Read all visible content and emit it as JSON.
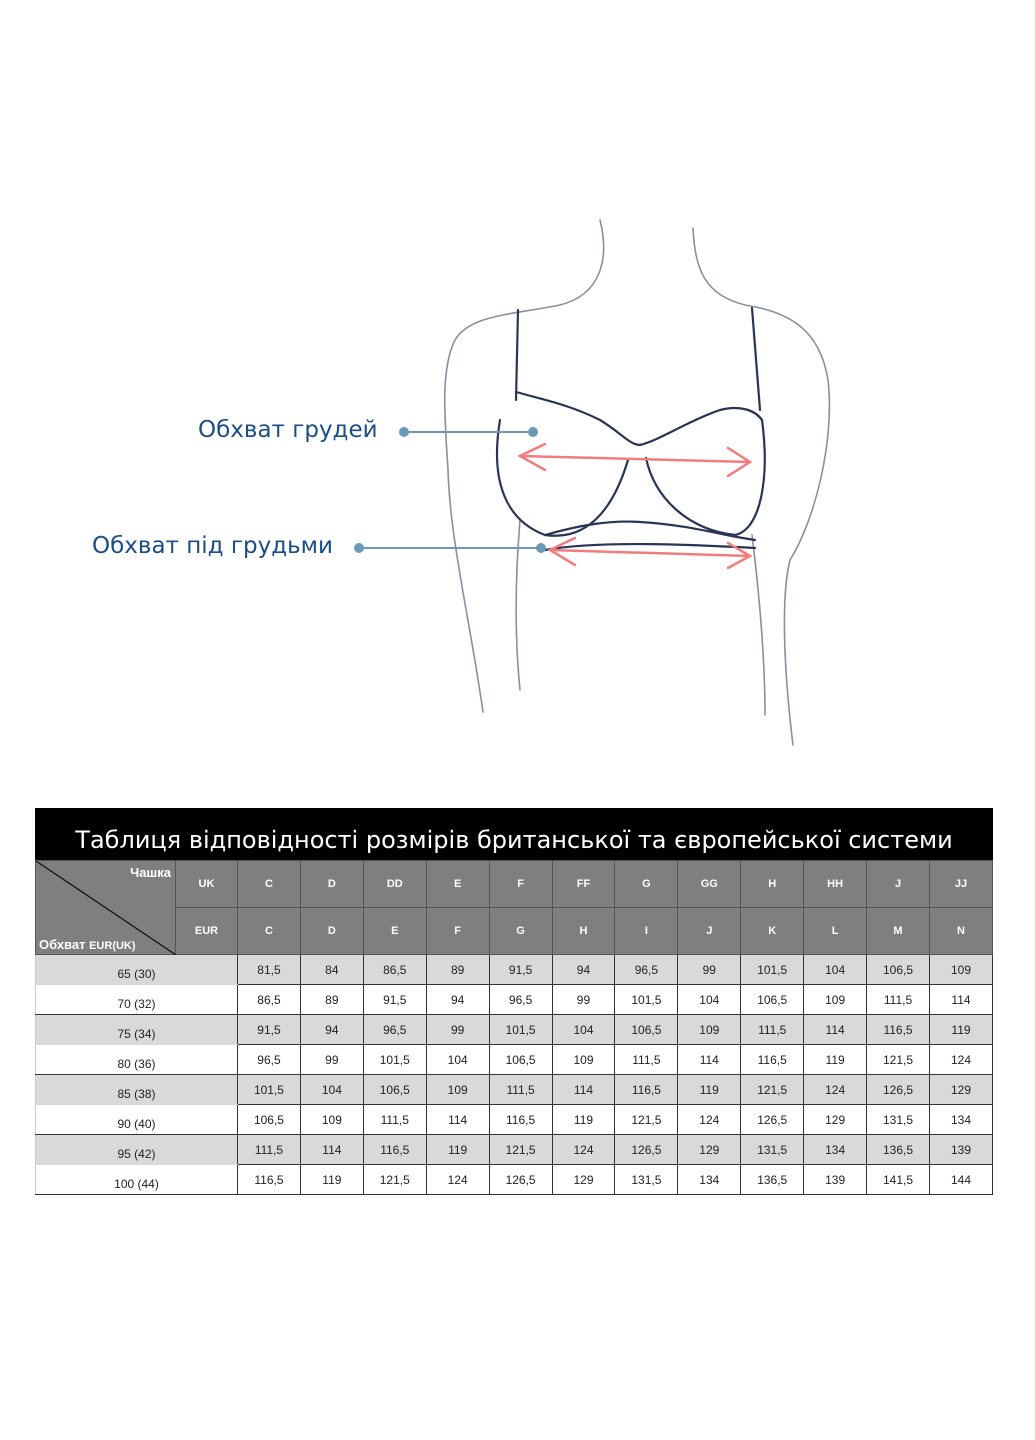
{
  "illustration": {
    "bust_label": "Обхват грудей",
    "underbust_label": "Обхват під грудьми",
    "label_color": "#1c4e86",
    "arrow_color": "#f07c7c",
    "leader_color": "#6a9ab8"
  },
  "table": {
    "title": "Таблиця відповідності розмірів британської та європейської системи",
    "corner_top": "Чашка",
    "corner_bottom_main": "Обхват",
    "corner_bottom_small": "EUR(UK)",
    "uk_label": "UK",
    "eur_label": "EUR",
    "uk_cups": [
      "C",
      "D",
      "DD",
      "E",
      "F",
      "FF",
      "G",
      "GG",
      "H",
      "HH",
      "J",
      "JJ"
    ],
    "eur_cups": [
      "C",
      "D",
      "E",
      "F",
      "G",
      "H",
      "I",
      "J",
      "K",
      "L",
      "M",
      "N"
    ],
    "rows": [
      {
        "band": "65 (30)",
        "values": [
          "81,5",
          "84",
          "86,5",
          "89",
          "91,5",
          "94",
          "96,5",
          "99",
          "101,5",
          "104",
          "106,5",
          "109"
        ]
      },
      {
        "band": "70 (32)",
        "values": [
          "86,5",
          "89",
          "91,5",
          "94",
          "96,5",
          "99",
          "101,5",
          "104",
          "106,5",
          "109",
          "111,5",
          "114"
        ]
      },
      {
        "band": "75 (34)",
        "values": [
          "91,5",
          "94",
          "96,5",
          "99",
          "101,5",
          "104",
          "106,5",
          "109",
          "111,5",
          "114",
          "116,5",
          "119"
        ]
      },
      {
        "band": "80 (36)",
        "values": [
          "96,5",
          "99",
          "101,5",
          "104",
          "106,5",
          "109",
          "111,5",
          "114",
          "116,5",
          "119",
          "121,5",
          "124"
        ]
      },
      {
        "band": "85 (38)",
        "values": [
          "101,5",
          "104",
          "106,5",
          "109",
          "111,5",
          "114",
          "116,5",
          "119",
          "121,5",
          "124",
          "126,5",
          "129"
        ]
      },
      {
        "band": "90 (40)",
        "values": [
          "106,5",
          "109",
          "111,5",
          "114",
          "116,5",
          "119",
          "121,5",
          "124",
          "126,5",
          "129",
          "131,5",
          "134"
        ]
      },
      {
        "band": "95 (42)",
        "values": [
          "111,5",
          "114",
          "116,5",
          "119",
          "121,5",
          "124",
          "126,5",
          "129",
          "131,5",
          "134",
          "136,5",
          "139"
        ]
      },
      {
        "band": "100 (44)",
        "values": [
          "116,5",
          "119",
          "121,5",
          "124",
          "126,5",
          "129",
          "131,5",
          "134",
          "136,5",
          "139",
          "141,5",
          "144"
        ]
      }
    ]
  }
}
